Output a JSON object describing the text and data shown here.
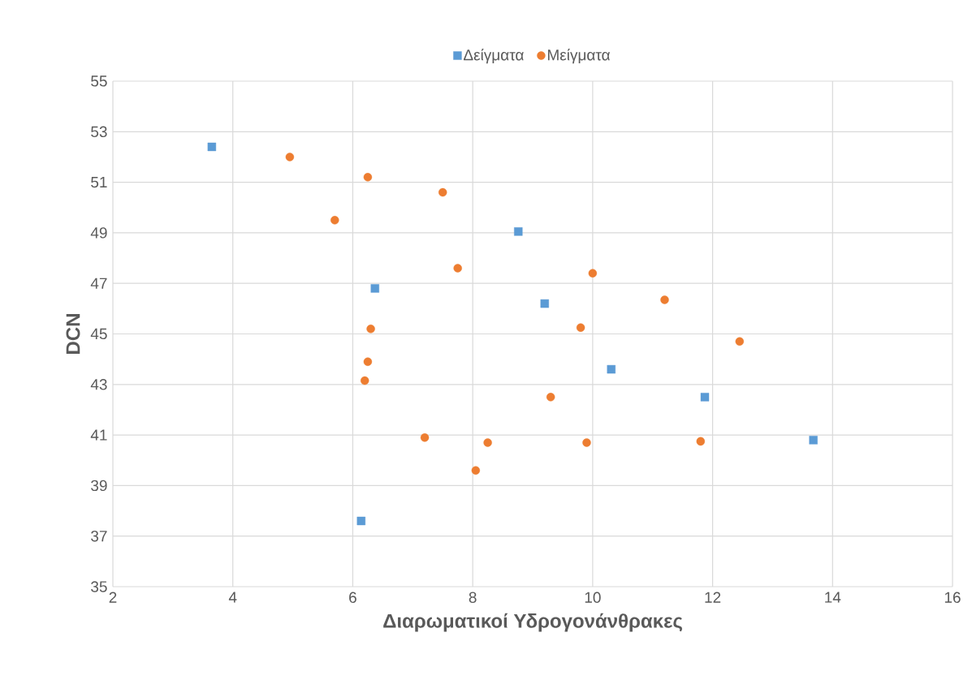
{
  "chart_data": {
    "type": "scatter",
    "xlabel": "Διαρωματικοί Υδρογονάνθρακες",
    "ylabel": "DCN",
    "xlim": [
      2,
      16
    ],
    "xticks": [
      2,
      4,
      6,
      8,
      10,
      12,
      14,
      16
    ],
    "ylim": [
      35,
      55
    ],
    "yticks": [
      35,
      37,
      39,
      41,
      43,
      45,
      47,
      49,
      51,
      53,
      55
    ],
    "grid": true,
    "legend": "top",
    "series": [
      {
        "name": "Δείγματα",
        "color": "#5b9bd5",
        "marker": "square",
        "x": [
          3.65,
          6.37,
          8.76,
          9.2,
          10.31,
          11.87,
          13.68,
          6.14
        ],
        "values": [
          52.4,
          46.8,
          49.05,
          46.2,
          43.6,
          42.5,
          40.8,
          37.6
        ]
      },
      {
        "name": "Μείγματα",
        "color": "#ed7d31",
        "marker": "circle",
        "x": [
          4.95,
          6.25,
          7.5,
          5.7,
          7.75,
          10.0,
          11.2,
          6.3,
          9.8,
          12.45,
          6.25,
          6.2,
          9.3,
          7.2,
          8.25,
          9.9,
          11.8,
          8.05
        ],
        "values": [
          52.0,
          51.2,
          50.6,
          49.5,
          47.6,
          47.4,
          46.35,
          45.2,
          45.25,
          44.7,
          43.9,
          43.15,
          42.5,
          40.9,
          40.7,
          40.7,
          40.75,
          39.6
        ]
      }
    ]
  }
}
